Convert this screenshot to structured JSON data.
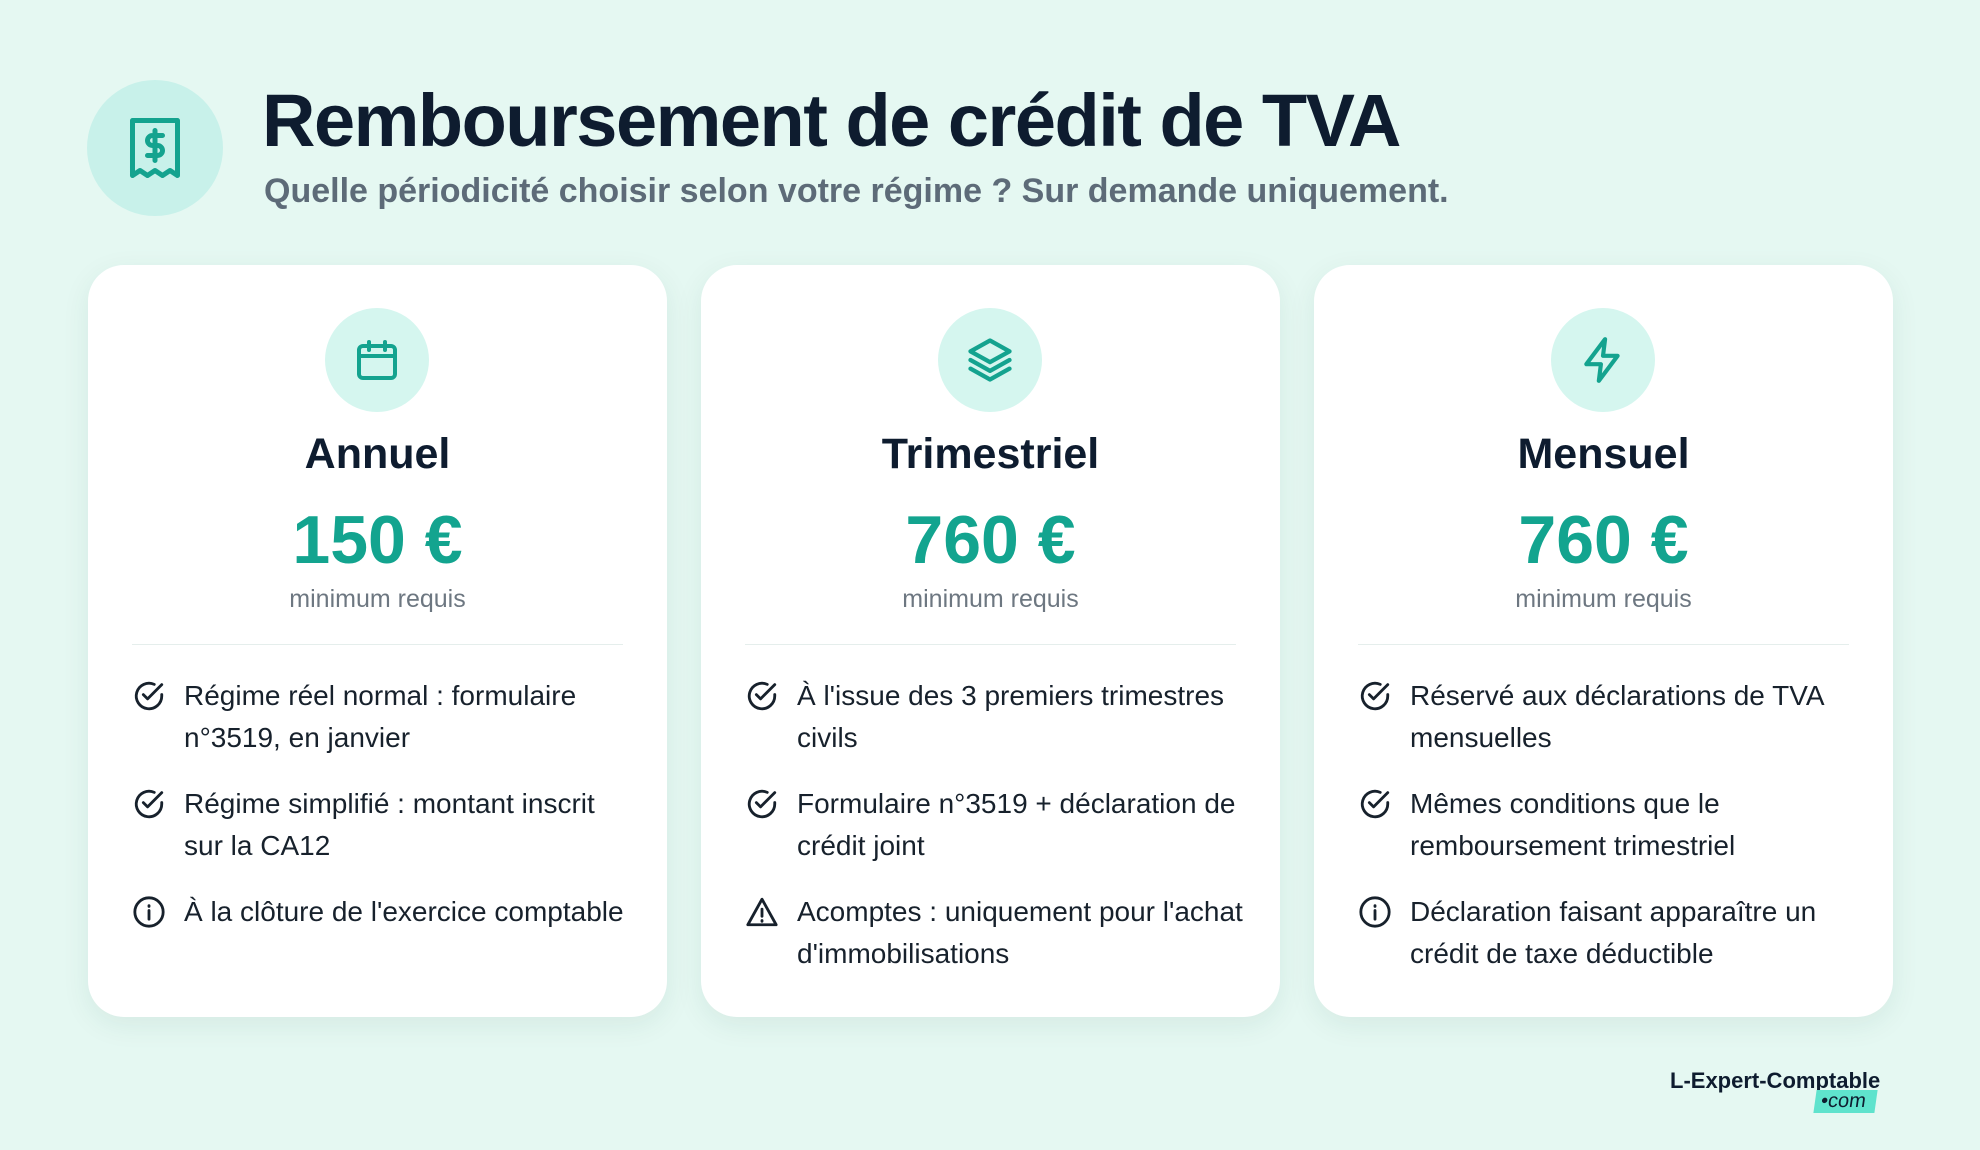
{
  "header": {
    "title": "Remboursement de crédit de TVA",
    "subtitle": "Quelle périodicité choisir selon votre régime ? Sur demande uniquement."
  },
  "cards": [
    {
      "title": "Annuel",
      "price": "150 €",
      "note": "minimum requis",
      "items": [
        "Régime réel normal : formulaire n°3519, en janvier",
        "Régime simplifié : montant inscrit sur la CA12",
        "À la clôture de l'exercice comptable"
      ]
    },
    {
      "title": "Trimestriel",
      "price": "760 €",
      "note": "minimum requis",
      "items": [
        "À l'issue des 3 premiers trimestres civils",
        "Formulaire n°3519 + déclaration de crédit joint",
        "Acomptes : uniquement pour l'achat d'immobilisations"
      ]
    },
    {
      "title": "Mensuel",
      "price": "760 €",
      "note": "minimum requis",
      "items": [
        "Réservé aux déclarations de TVA mensuelles",
        "Mêmes conditions que le remboursement trimestriel",
        "Déclaration faisant apparaître un crédit de taxe déductible"
      ]
    }
  ],
  "footer": {
    "brand": "L-Expert-Comptable",
    "suffix": "•com"
  }
}
